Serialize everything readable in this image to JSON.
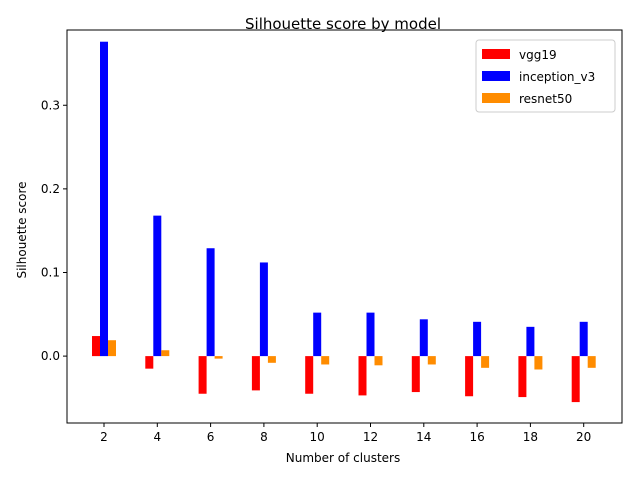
{
  "chart_data": {
    "type": "bar",
    "title": "Silhouette score by model",
    "xlabel": "Number of clusters",
    "ylabel": "Silhouette score",
    "categories": [
      "2",
      "4",
      "6",
      "8",
      "10",
      "12",
      "14",
      "16",
      "18",
      "20"
    ],
    "ylim": [
      -0.08,
      0.39
    ],
    "yticks": [
      0.0,
      0.1,
      0.2,
      0.3
    ],
    "ytick_labels": [
      "0.0",
      "0.1",
      "0.2",
      "0.3"
    ],
    "legend_position": "top-right",
    "grid": false,
    "series": [
      {
        "name": "vgg19",
        "color": "#ff0000",
        "values": [
          0.024,
          -0.015,
          -0.045,
          -0.041,
          -0.045,
          -0.047,
          -0.043,
          -0.048,
          -0.049,
          -0.055
        ]
      },
      {
        "name": "inception_v3",
        "color": "#0000ff",
        "values": [
          0.376,
          0.168,
          0.129,
          0.112,
          0.052,
          0.052,
          0.044,
          0.041,
          0.035,
          0.041
        ]
      },
      {
        "name": "resnet50",
        "color": "#ff8c00",
        "values": [
          0.019,
          0.007,
          -0.003,
          -0.008,
          -0.01,
          -0.011,
          -0.01,
          -0.014,
          -0.016,
          -0.014
        ]
      }
    ]
  }
}
